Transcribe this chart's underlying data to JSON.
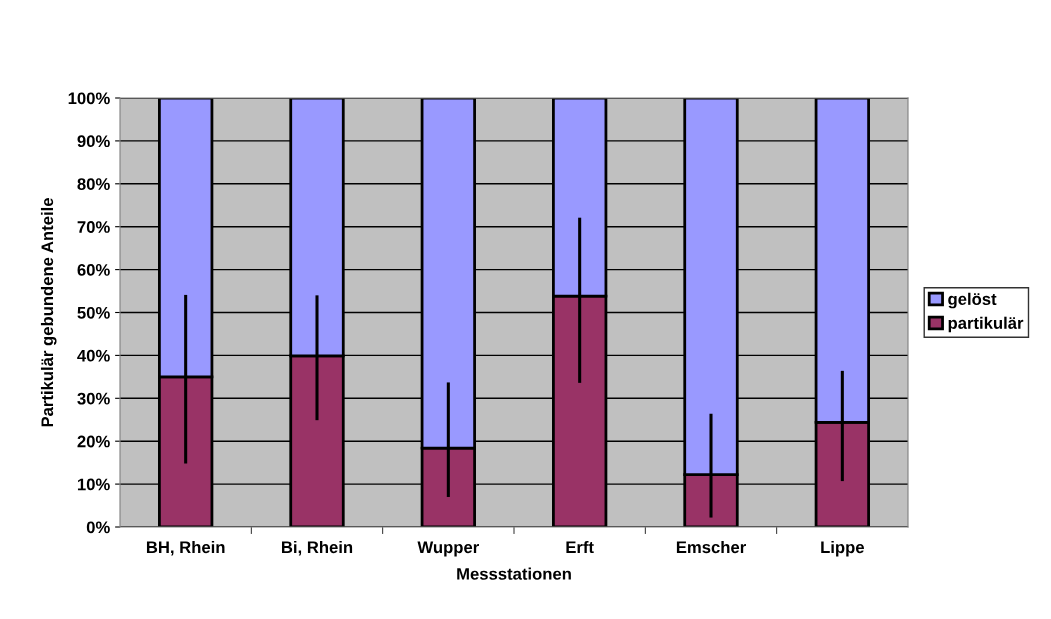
{
  "chart_data": {
    "type": "bar",
    "stacked": true,
    "xlabel": "Messstationen",
    "ylabel": "Partikulär gebundene Anteile",
    "categories": [
      "BH, Rhein",
      "Bi, Rhein",
      "Wupper",
      "Erft",
      "Emscher",
      "Lippe"
    ],
    "series": [
      {
        "name": "partikulär",
        "color": "#993366",
        "values": [
          35.0,
          39.9,
          18.4,
          53.8,
          12.2,
          24.4
        ],
        "errors": [
          [
            14.8,
            54.1
          ],
          [
            24.9,
            54.0
          ],
          [
            7.0,
            33.7
          ],
          [
            33.6,
            72.1
          ],
          [
            2.2,
            26.4
          ],
          [
            10.7,
            36.4
          ]
        ]
      },
      {
        "name": "gelöst",
        "color": "#9999ff",
        "values": [
          65.0,
          60.1,
          81.6,
          46.2,
          87.8,
          75.6
        ]
      }
    ],
    "ylim": [
      0,
      100
    ],
    "yticks": [
      {
        "value": 0,
        "label": "0%"
      },
      {
        "value": 10,
        "label": "10%"
      },
      {
        "value": 20,
        "label": "20%"
      },
      {
        "value": 30,
        "label": "30%"
      },
      {
        "value": 40,
        "label": "40%"
      },
      {
        "value": 50,
        "label": "50%"
      },
      {
        "value": 60,
        "label": "60%"
      },
      {
        "value": 70,
        "label": "70%"
      },
      {
        "value": 80,
        "label": "80%"
      },
      {
        "value": 90,
        "label": "90%"
      },
      {
        "value": 100,
        "label": "100%"
      }
    ],
    "grid": "y",
    "legend": "right"
  }
}
